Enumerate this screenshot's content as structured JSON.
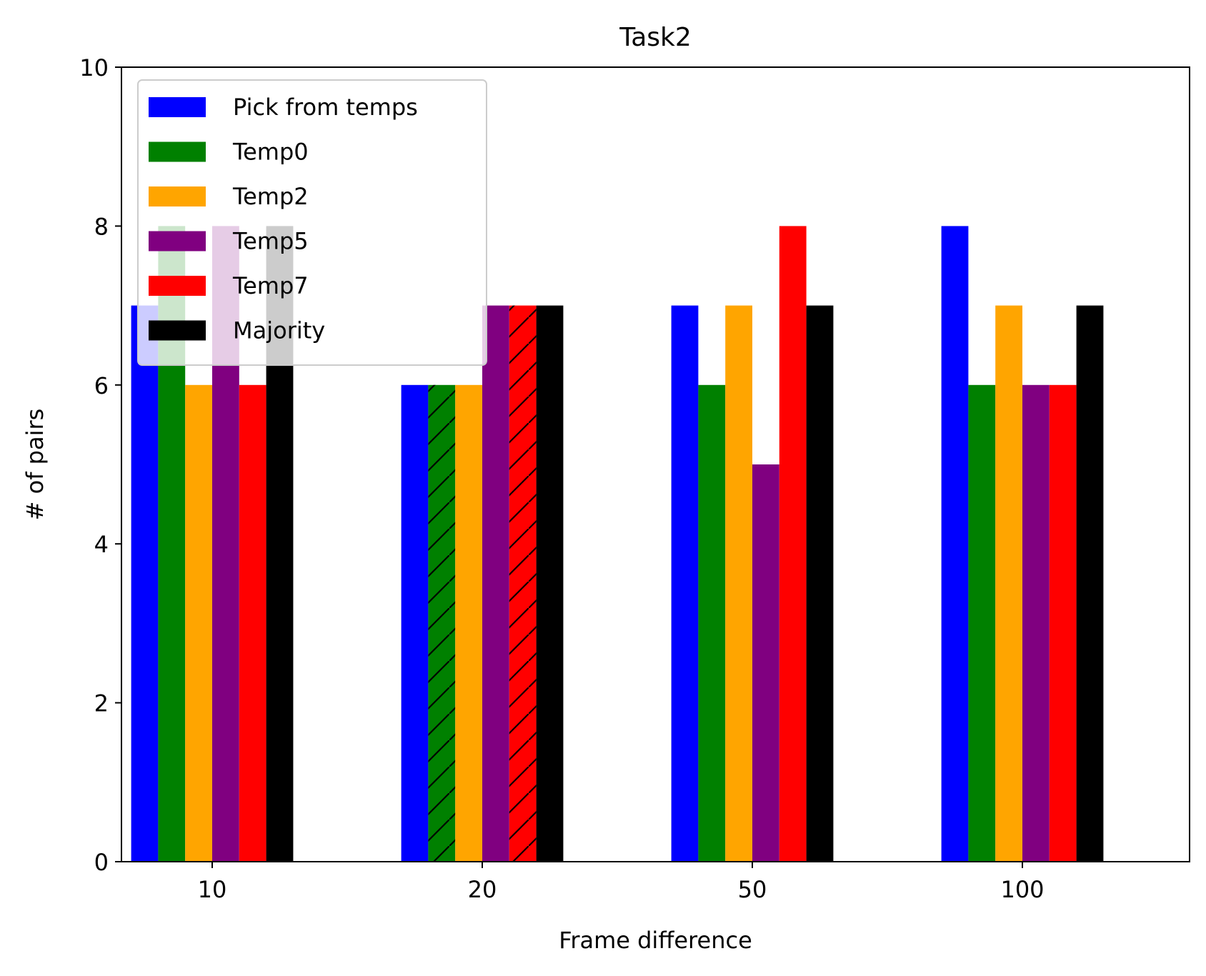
{
  "chart_data": {
    "type": "bar",
    "title": "Task2",
    "xlabel": "Frame difference",
    "ylabel": "# of pairs",
    "categories": [
      "10",
      "20",
      "50",
      "100"
    ],
    "ylim": [
      0,
      10
    ],
    "yticks": [
      "0",
      "2",
      "4",
      "6",
      "8",
      "10"
    ],
    "grid": false,
    "legend_position": "upper-left",
    "series": [
      {
        "name": "Pick from temps",
        "color": "#0000ff",
        "values": [
          7,
          6,
          7,
          8
        ]
      },
      {
        "name": "Temp0",
        "color": "#008000",
        "values": [
          8,
          6,
          6,
          6
        ]
      },
      {
        "name": "Temp2",
        "color": "#ffa500",
        "values": [
          6,
          6,
          7,
          7
        ]
      },
      {
        "name": "Temp5",
        "color": "#800080",
        "values": [
          8,
          7,
          5,
          6
        ]
      },
      {
        "name": "Temp7",
        "color": "#ff0000",
        "values": [
          6,
          7,
          8,
          6
        ]
      },
      {
        "name": "Majority",
        "color": "#000000",
        "values": [
          8,
          7,
          7,
          7
        ]
      }
    ],
    "hatched_bars": [
      {
        "series": "Temp0",
        "category": "20"
      },
      {
        "series": "Temp7",
        "category": "20"
      }
    ]
  }
}
